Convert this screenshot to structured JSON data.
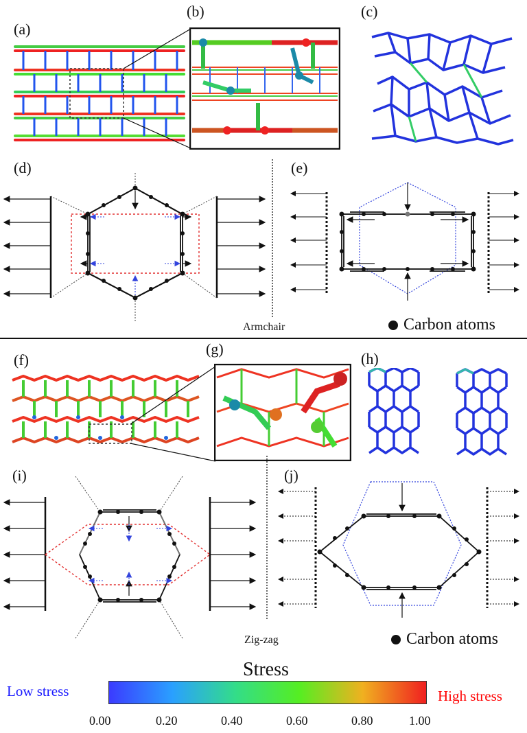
{
  "panels": {
    "a": "(a)",
    "b": "(b)",
    "c": "(c)",
    "d": "(d)",
    "e": "(e)",
    "f": "(f)",
    "g": "(g)",
    "h": "(h)",
    "i": "(i)",
    "j": "(j)"
  },
  "directions": {
    "top": "Armchair",
    "bottom": "Zig-zag"
  },
  "legend": {
    "top": "Carbon atoms",
    "bottom": "Carbon atoms"
  },
  "colorbar": {
    "title": "Stress",
    "low_label": "Low stress",
    "high_label": "High stress",
    "ticks": [
      "0.00",
      "0.20",
      "0.40",
      "0.60",
      "0.80",
      "1.00"
    ],
    "gradient": [
      "#3b3bff",
      "#2aa0ff",
      "#33dd88",
      "#55ee22",
      "#f0b020",
      "#f02020"
    ]
  },
  "colors": {
    "low": "#1a1aff",
    "high": "#ff0000",
    "hexagon_dash": "#e23030",
    "ideal_dash": "#3344dd"
  }
}
